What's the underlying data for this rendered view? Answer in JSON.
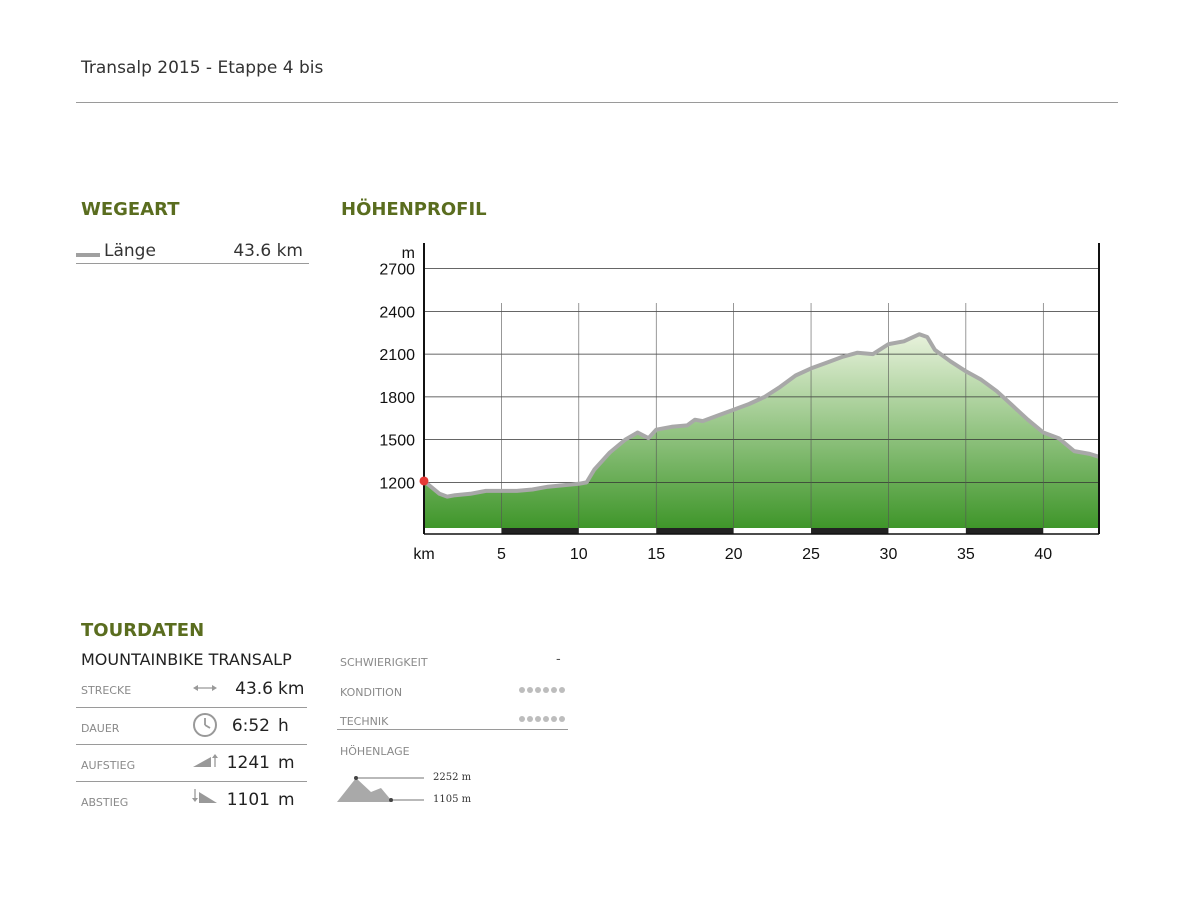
{
  "header": {
    "title": "Transalp 2015 - Etappe 4 bis"
  },
  "wegeart": {
    "heading": "WEGEART",
    "label": "Länge",
    "value": "43.6 km"
  },
  "profile": {
    "heading": "HÖHENPROFIL"
  },
  "chart_data": {
    "type": "area",
    "title": "HÖHENPROFIL",
    "xlabel": "km",
    "ylabel": "m",
    "xlim": [
      0,
      43.6
    ],
    "ylim": [
      880,
      2880
    ],
    "xticks": [
      5,
      10,
      15,
      20,
      25,
      30,
      35,
      40
    ],
    "yticks": [
      1200,
      1500,
      1800,
      2100,
      2400,
      2700
    ],
    "grid": true,
    "x": [
      0,
      1,
      1.5,
      2,
      3,
      4,
      5,
      6,
      7,
      8,
      9,
      10,
      10.5,
      11,
      12,
      13,
      13.8,
      14.5,
      15,
      16,
      17,
      17.5,
      18,
      19,
      20,
      21,
      22,
      23,
      24,
      25,
      26,
      27,
      28,
      29,
      30,
      31,
      32,
      32.5,
      33,
      34,
      35,
      36,
      37,
      38,
      39,
      40,
      41,
      42,
      43,
      43.6
    ],
    "y": [
      1210,
      1120,
      1100,
      1110,
      1120,
      1140,
      1140,
      1140,
      1150,
      1170,
      1180,
      1190,
      1200,
      1290,
      1410,
      1500,
      1550,
      1510,
      1570,
      1590,
      1600,
      1640,
      1630,
      1670,
      1710,
      1750,
      1800,
      1870,
      1950,
      2000,
      2040,
      2080,
      2110,
      2100,
      2170,
      2190,
      2240,
      2220,
      2130,
      2050,
      1980,
      1920,
      1840,
      1740,
      1640,
      1550,
      1510,
      1420,
      1400,
      1380
    ],
    "start_marker": {
      "x": 0,
      "y": 1210,
      "color": "#e53935"
    },
    "colors": {
      "line": "#a8a8a8",
      "fill_top": "#e8f2dc",
      "fill_bottom": "#3f962a",
      "grid": "#333333",
      "marker": "#e53935"
    }
  },
  "tourdaten": {
    "heading": "TOURDATEN",
    "subtitle": "MOUNTAINBIKE TRANSALP",
    "stats": [
      {
        "label": "STRECKE",
        "icon": "double-arrow-icon",
        "value": "43.6",
        "unit": "km"
      },
      {
        "label": "DAUER",
        "icon": "clock-icon",
        "value": "6:52",
        "unit": "h"
      },
      {
        "label": "AUFSTIEG",
        "icon": "ascent-icon",
        "value": "1241",
        "unit": "m"
      },
      {
        "label": "ABSTIEG",
        "icon": "descent-icon",
        "value": "1101",
        "unit": "m"
      }
    ],
    "schwierigkeit": {
      "label": "SCHWIERIGKEIT",
      "value": "-"
    },
    "kondition": {
      "label": "KONDITION",
      "dots": 6
    },
    "technik": {
      "label": "TECHNIK",
      "dots": 6
    },
    "hoehenlage": {
      "label": "HÖHENLAGE",
      "max": "2252 m",
      "min": "1105 m"
    }
  }
}
